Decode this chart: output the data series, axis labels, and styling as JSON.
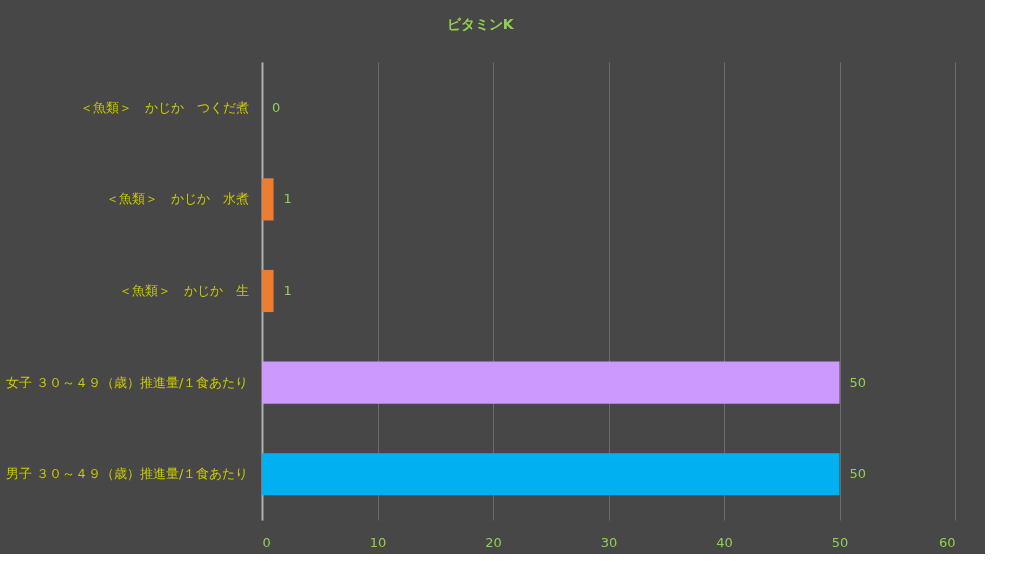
{
  "chart_data": {
    "type": "bar",
    "orientation": "horizontal",
    "title": "ビタミンK",
    "categories": [
      "＜魚類＞　かじか　つくだ煮",
      "＜魚類＞　かじか　水煮",
      "＜魚類＞　かじか　生",
      "女子 ３０～４９（歳）推進量/１食あたり",
      "男子 ３０～４９（歳）推進量/１食あたり"
    ],
    "values": [
      0,
      1,
      1,
      50,
      50
    ],
    "colors": [
      "#ed7d31",
      "#ed7d31",
      "#ed7d31",
      "#cc99ff",
      "#00b0f0"
    ],
    "xlim": [
      0,
      60
    ],
    "xticks": [
      0,
      10,
      20,
      30,
      40,
      50,
      60
    ],
    "grid": "x",
    "data_labels": true
  }
}
